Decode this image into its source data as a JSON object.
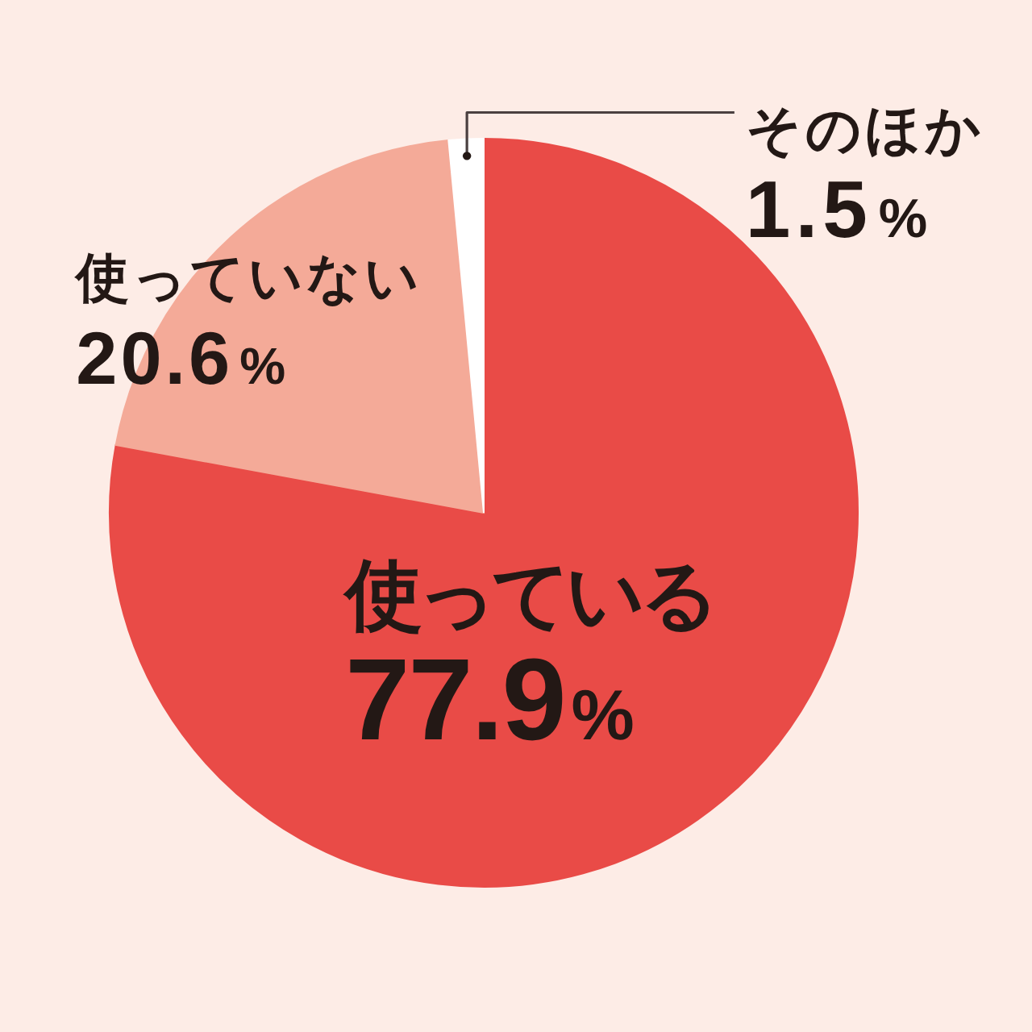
{
  "chart_data": {
    "type": "pie",
    "categories": [
      "使っている",
      "使っていない",
      "そのほか"
    ],
    "values": [
      77.9,
      20.6,
      1.5
    ],
    "colors": [
      "#e94b47",
      "#f4aa98",
      "#ffffff"
    ],
    "value_labels": [
      "77.9%",
      "20.6%",
      "1.5%"
    ]
  }
}
